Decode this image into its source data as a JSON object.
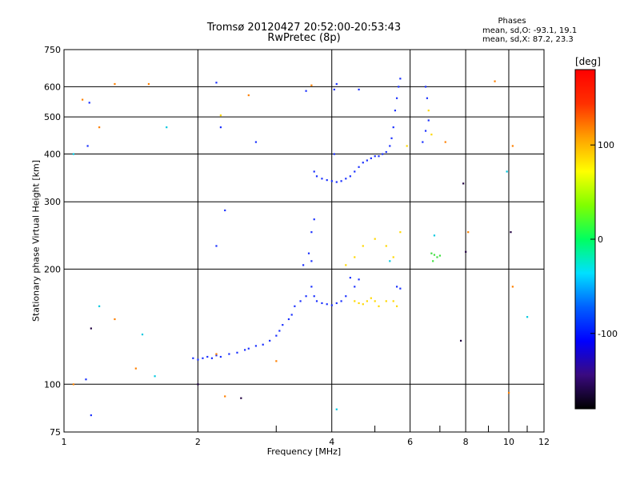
{
  "chart_data": {
    "type": "scatter",
    "title": "Tromsø 20120427 20:52:00-20:53:43",
    "subtitle": "RwPretec (8p)",
    "xlabel": "Frequency [MHz]",
    "ylabel": "Stationary phase Virtual Height [km]",
    "x_scale": "log",
    "y_scale": "log",
    "xlim": [
      1,
      12
    ],
    "ylim": [
      75,
      750
    ],
    "x_ticks": [
      1,
      2,
      4,
      6,
      8,
      10,
      12
    ],
    "y_ticks": [
      75,
      100,
      200,
      300,
      400,
      500,
      600,
      750
    ],
    "grid": true,
    "phase_stats": {
      "header": "Phases",
      "o_line": "mean, sd,O: -93.1, 19.1",
      "x_line": "mean, sd,X:  87.2, 23.3"
    },
    "colorbar": {
      "title": "[deg]",
      "range": [
        -180,
        180
      ],
      "ticks": [
        100,
        0,
        -100
      ],
      "colors": [
        "#000000",
        "#3a0a80",
        "#0000ff",
        "#0060ff",
        "#00e0ff",
        "#00ff60",
        "#80ff00",
        "#ffff00",
        "#ffa000",
        "#ff3000",
        "#ff0000"
      ]
    },
    "series": [
      {
        "color": "#1a30ff",
        "points": [
          [
            1.95,
            117
          ],
          [
            2.0,
            116
          ],
          [
            2.05,
            117
          ],
          [
            2.1,
            118
          ],
          [
            2.15,
            117
          ],
          [
            2.2,
            119
          ],
          [
            2.25,
            118
          ],
          [
            2.35,
            120
          ],
          [
            2.45,
            121
          ],
          [
            2.55,
            123
          ],
          [
            2.6,
            124
          ],
          [
            2.7,
            126
          ],
          [
            2.8,
            127
          ],
          [
            2.9,
            130
          ],
          [
            3.0,
            134
          ],
          [
            3.05,
            138
          ],
          [
            3.1,
            143
          ],
          [
            3.2,
            148
          ],
          [
            3.25,
            152
          ],
          [
            3.3,
            160
          ],
          [
            3.4,
            165
          ],
          [
            3.5,
            170
          ],
          [
            3.45,
            205
          ],
          [
            3.55,
            220
          ],
          [
            3.6,
            250
          ],
          [
            3.65,
            270
          ],
          [
            3.6,
            180
          ],
          [
            3.65,
            170
          ],
          [
            3.7,
            165
          ],
          [
            3.8,
            163
          ],
          [
            3.9,
            162
          ],
          [
            4.0,
            161
          ],
          [
            4.1,
            163
          ],
          [
            4.2,
            165
          ],
          [
            4.3,
            170
          ],
          [
            3.65,
            360
          ],
          [
            3.7,
            350
          ],
          [
            3.8,
            345
          ],
          [
            3.9,
            342
          ],
          [
            4.0,
            340
          ],
          [
            4.1,
            338
          ],
          [
            4.2,
            340
          ],
          [
            4.3,
            345
          ],
          [
            4.4,
            350
          ],
          [
            4.5,
            360
          ],
          [
            4.6,
            370
          ],
          [
            4.7,
            380
          ],
          [
            4.8,
            385
          ],
          [
            4.9,
            390
          ],
          [
            5.0,
            395
          ],
          [
            5.1,
            395
          ],
          [
            5.2,
            400
          ],
          [
            5.3,
            405
          ],
          [
            5.4,
            420
          ],
          [
            5.45,
            440
          ],
          [
            5.5,
            470
          ],
          [
            5.55,
            520
          ],
          [
            5.6,
            560
          ],
          [
            5.65,
            600
          ],
          [
            5.7,
            630
          ],
          [
            5.6,
            180
          ],
          [
            5.7,
            178
          ],
          [
            6.4,
            430
          ],
          [
            6.5,
            460
          ],
          [
            6.6,
            490
          ],
          [
            6.55,
            560
          ],
          [
            6.5,
            600
          ],
          [
            4.4,
            190
          ],
          [
            4.5,
            180
          ],
          [
            4.6,
            188
          ],
          [
            1.13,
            420
          ],
          [
            1.14,
            545
          ],
          [
            1.15,
            83
          ],
          [
            2.2,
            615
          ],
          [
            2.3,
            285
          ],
          [
            2.2,
            230
          ],
          [
            2.25,
            470
          ],
          [
            2.7,
            430
          ],
          [
            3.5,
            585
          ],
          [
            3.6,
            210
          ],
          [
            4.05,
            590
          ],
          [
            4.05,
            400
          ],
          [
            4.1,
            610
          ],
          [
            4.6,
            590
          ],
          [
            1.12,
            103
          ]
        ]
      },
      {
        "color": "#ffd800",
        "points": [
          [
            4.5,
            165
          ],
          [
            4.6,
            163
          ],
          [
            4.7,
            162
          ],
          [
            4.8,
            165
          ],
          [
            4.9,
            168
          ],
          [
            5.0,
            165
          ],
          [
            5.1,
            160
          ],
          [
            5.3,
            165
          ],
          [
            5.5,
            165
          ],
          [
            5.6,
            160
          ],
          [
            4.3,
            205
          ],
          [
            4.5,
            215
          ],
          [
            4.7,
            230
          ],
          [
            5.0,
            240
          ],
          [
            5.3,
            230
          ],
          [
            5.5,
            215
          ],
          [
            5.7,
            250
          ],
          [
            5.9,
            420
          ],
          [
            6.6,
            520
          ],
          [
            6.7,
            450
          ],
          [
            2.25,
            505
          ]
        ]
      },
      {
        "color": "#40e040",
        "points": [
          [
            6.7,
            220
          ],
          [
            6.8,
            218
          ],
          [
            6.9,
            215
          ],
          [
            7.0,
            217
          ],
          [
            6.75,
            210
          ]
        ]
      },
      {
        "color": "#ff8000",
        "points": [
          [
            1.1,
            555
          ],
          [
            1.3,
            610
          ],
          [
            1.55,
            610
          ],
          [
            1.3,
            148
          ],
          [
            1.45,
            110
          ],
          [
            2.3,
            93
          ],
          [
            2.2,
            120
          ],
          [
            3.0,
            115
          ],
          [
            3.6,
            605
          ],
          [
            7.2,
            430
          ],
          [
            8.1,
            250
          ],
          [
            9.3,
            620
          ],
          [
            10.0,
            95
          ],
          [
            10.2,
            180
          ],
          [
            10.2,
            420
          ],
          [
            2.6,
            570
          ],
          [
            1.2,
            470
          ],
          [
            1.05,
            100
          ]
        ]
      },
      {
        "color": "#00c8e0",
        "points": [
          [
            1.05,
            400
          ],
          [
            1.7,
            470
          ],
          [
            1.6,
            105
          ],
          [
            1.5,
            135
          ],
          [
            4.1,
            86
          ],
          [
            5.4,
            210
          ],
          [
            6.8,
            245
          ],
          [
            9.9,
            360
          ],
          [
            11.0,
            150
          ],
          [
            1.2,
            160
          ]
        ]
      },
      {
        "color": "#200040",
        "points": [
          [
            2.0,
            100
          ],
          [
            7.9,
            335
          ],
          [
            8.0,
            222
          ],
          [
            10.1,
            250
          ],
          [
            2.5,
            92
          ],
          [
            7.8,
            130
          ],
          [
            1.15,
            140
          ]
        ]
      }
    ]
  }
}
